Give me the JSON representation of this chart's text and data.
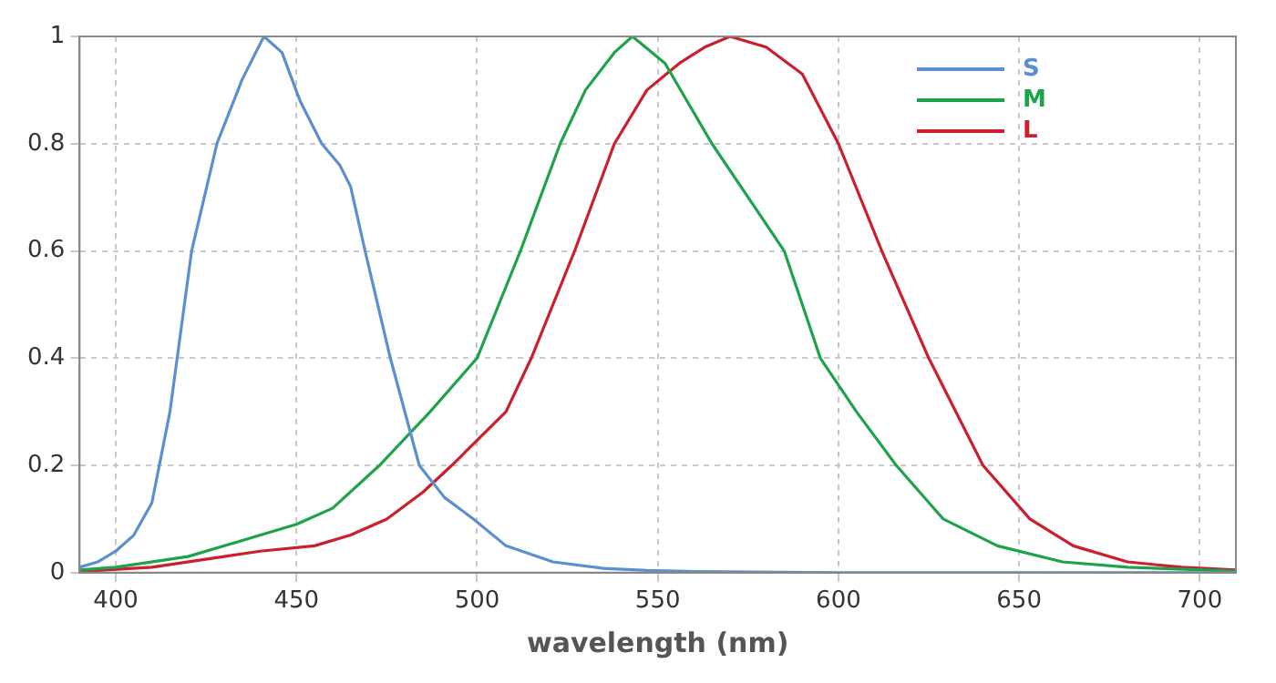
{
  "chart_data": {
    "type": "line",
    "xlabel": "wavelength (nm)",
    "xlim": [
      390,
      710
    ],
    "xticks": [
      400,
      450,
      500,
      550,
      600,
      650,
      700
    ],
    "ylim": [
      0,
      1
    ],
    "yticks": [
      0,
      0.2,
      0.4,
      0.6,
      0.8,
      1
    ],
    "grid": true,
    "legend": "top right",
    "marker": "none",
    "line_style": "solid",
    "series": [
      {
        "name": "S",
        "color": "#5b8fcf",
        "x": [
          390,
          395,
          400,
          405,
          410,
          415,
          421,
          428,
          435,
          441,
          446,
          451,
          457,
          462,
          465,
          469,
          476,
          484,
          491,
          499,
          508,
          521,
          535,
          547,
          560,
          600,
          650,
          710
        ],
        "values": [
          0.01,
          0.02,
          0.04,
          0.07,
          0.13,
          0.3,
          0.6,
          0.8,
          0.92,
          1,
          0.97,
          0.88,
          0.8,
          0.76,
          0.72,
          0.6,
          0.4,
          0.2,
          0.14,
          0.1,
          0.05,
          0.02,
          0.008,
          0.004,
          0.002,
          0,
          0,
          0
        ]
      },
      {
        "name": "M",
        "color": "#1fa34a",
        "x": [
          390,
          400,
          420,
          435,
          450,
          460,
          473,
          487,
          500,
          512,
          523,
          530,
          538,
          543,
          552,
          565,
          575,
          585,
          595,
          605,
          616,
          629,
          644,
          662,
          680,
          710
        ],
        "values": [
          0.005,
          0.01,
          0.03,
          0.06,
          0.09,
          0.12,
          0.2,
          0.3,
          0.4,
          0.6,
          0.8,
          0.9,
          0.97,
          1,
          0.95,
          0.8,
          0.7,
          0.6,
          0.4,
          0.3,
          0.2,
          0.1,
          0.05,
          0.02,
          0.01,
          0.003
        ]
      },
      {
        "name": "L",
        "color": "#cc1f2e",
        "x": [
          390,
          410,
          430,
          440,
          455,
          465,
          475,
          485,
          493,
          508,
          515,
          527,
          538,
          547,
          556,
          563,
          570,
          580,
          590,
          600,
          612,
          625,
          640,
          653,
          665,
          680,
          695,
          710
        ],
        "values": [
          0.002,
          0.01,
          0.03,
          0.04,
          0.05,
          0.07,
          0.1,
          0.15,
          0.2,
          0.3,
          0.4,
          0.6,
          0.8,
          0.9,
          0.95,
          0.98,
          1,
          0.98,
          0.93,
          0.8,
          0.6,
          0.4,
          0.2,
          0.1,
          0.05,
          0.02,
          0.01,
          0.005
        ]
      }
    ]
  }
}
